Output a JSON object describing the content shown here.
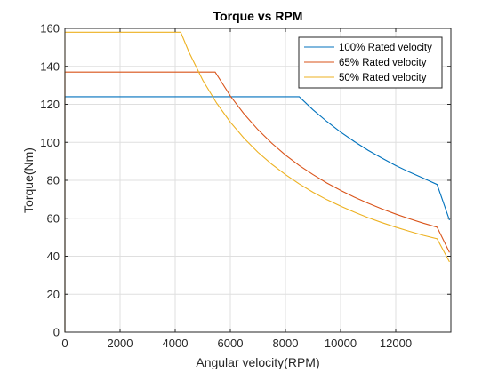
{
  "chart_data": {
    "type": "line",
    "title": "Torque vs RPM",
    "xlabel": "Angular velocity(RPM)",
    "ylabel": "Torque(Nm)",
    "xlim": [
      0,
      14000
    ],
    "ylim": [
      0,
      160
    ],
    "xticks": [
      0,
      2000,
      4000,
      6000,
      8000,
      10000,
      12000
    ],
    "yticks": [
      0,
      20,
      40,
      60,
      80,
      100,
      120,
      140,
      160
    ],
    "grid": true,
    "legend_position": "top-right",
    "series": [
      {
        "name": "100% Rated velocity",
        "color": "#0072BD",
        "points": [
          [
            0,
            0
          ],
          [
            0,
            124
          ],
          [
            8500,
            124
          ],
          [
            9000,
            117.1
          ],
          [
            9500,
            111
          ],
          [
            10000,
            105.4
          ],
          [
            10500,
            100.4
          ],
          [
            11000,
            95.8
          ],
          [
            11500,
            91.7
          ],
          [
            12000,
            87.8
          ],
          [
            12500,
            84.3
          ],
          [
            13000,
            81.1
          ],
          [
            13500,
            77.8
          ],
          [
            13950,
            59
          ]
        ]
      },
      {
        "name": "65% Rated velocity",
        "color": "#D95319",
        "points": [
          [
            0,
            0
          ],
          [
            0,
            137
          ],
          [
            5450,
            137
          ],
          [
            6000,
            124.4
          ],
          [
            6500,
            114.9
          ],
          [
            7000,
            106.7
          ],
          [
            7500,
            99.6
          ],
          [
            8000,
            93.3
          ],
          [
            8500,
            87.8
          ],
          [
            9000,
            83
          ],
          [
            9500,
            78.6
          ],
          [
            10000,
            74.7
          ],
          [
            10500,
            71.1
          ],
          [
            11000,
            67.9
          ],
          [
            11500,
            64.9
          ],
          [
            12000,
            62.2
          ],
          [
            12500,
            59.7
          ],
          [
            13000,
            57.4
          ],
          [
            13500,
            55.3
          ],
          [
            13950,
            42
          ]
        ]
      },
      {
        "name": "50% Rated velocity",
        "color": "#EDB120",
        "points": [
          [
            0,
            0
          ],
          [
            0,
            158
          ],
          [
            4200,
            158
          ],
          [
            4500,
            147.5
          ],
          [
            5000,
            132.7
          ],
          [
            5500,
            120.7
          ],
          [
            6000,
            110.6
          ],
          [
            6500,
            102.1
          ],
          [
            7000,
            94.8
          ],
          [
            7500,
            88.5
          ],
          [
            8000,
            83
          ],
          [
            8500,
            78.1
          ],
          [
            9000,
            73.7
          ],
          [
            9500,
            69.8
          ],
          [
            10000,
            66.4
          ],
          [
            10500,
            63.2
          ],
          [
            11000,
            60.3
          ],
          [
            11500,
            57.7
          ],
          [
            12000,
            55.3
          ],
          [
            12500,
            53.1
          ],
          [
            13000,
            51
          ],
          [
            13500,
            49.2
          ],
          [
            13950,
            37
          ]
        ]
      }
    ]
  }
}
